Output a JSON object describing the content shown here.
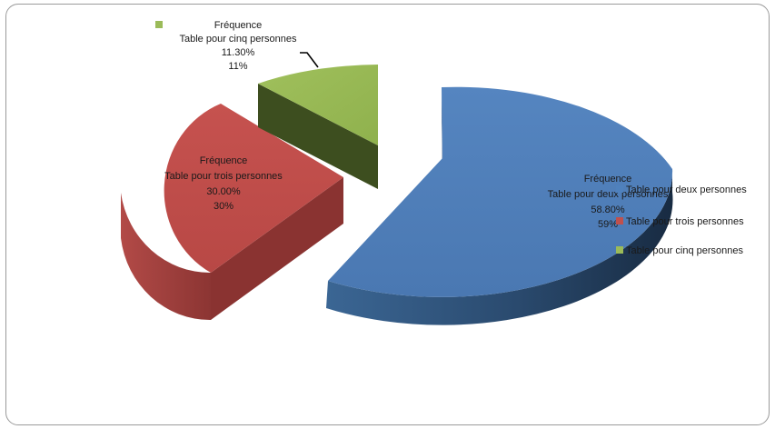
{
  "chart_data": {
    "type": "pie",
    "style": "3d-exploded",
    "slices": [
      {
        "category": "Table pour deux personnes",
        "series_name": "Fréquence",
        "percent_text": "58.80%",
        "rounded_text": "59%",
        "value": 58.8,
        "color": "#4f81bd",
        "legend_label": "Table pour deux personnes"
      },
      {
        "category": "Table pour trois personnes",
        "series_name": "Fréquence",
        "percent_text": "30.00%",
        "rounded_text": "30%",
        "value": 30.0,
        "color": "#c0504d",
        "legend_label": "Table pour trois personnes"
      },
      {
        "category": "Table pour cinq personnes",
        "series_name": "Fréquence",
        "percent_text": "11.30%",
        "rounded_text": "11%",
        "value": 11.3,
        "color": "#9bbb59",
        "legend_label": "Table pour cinq personnes"
      }
    ],
    "legend_position": "right",
    "grid": false
  }
}
